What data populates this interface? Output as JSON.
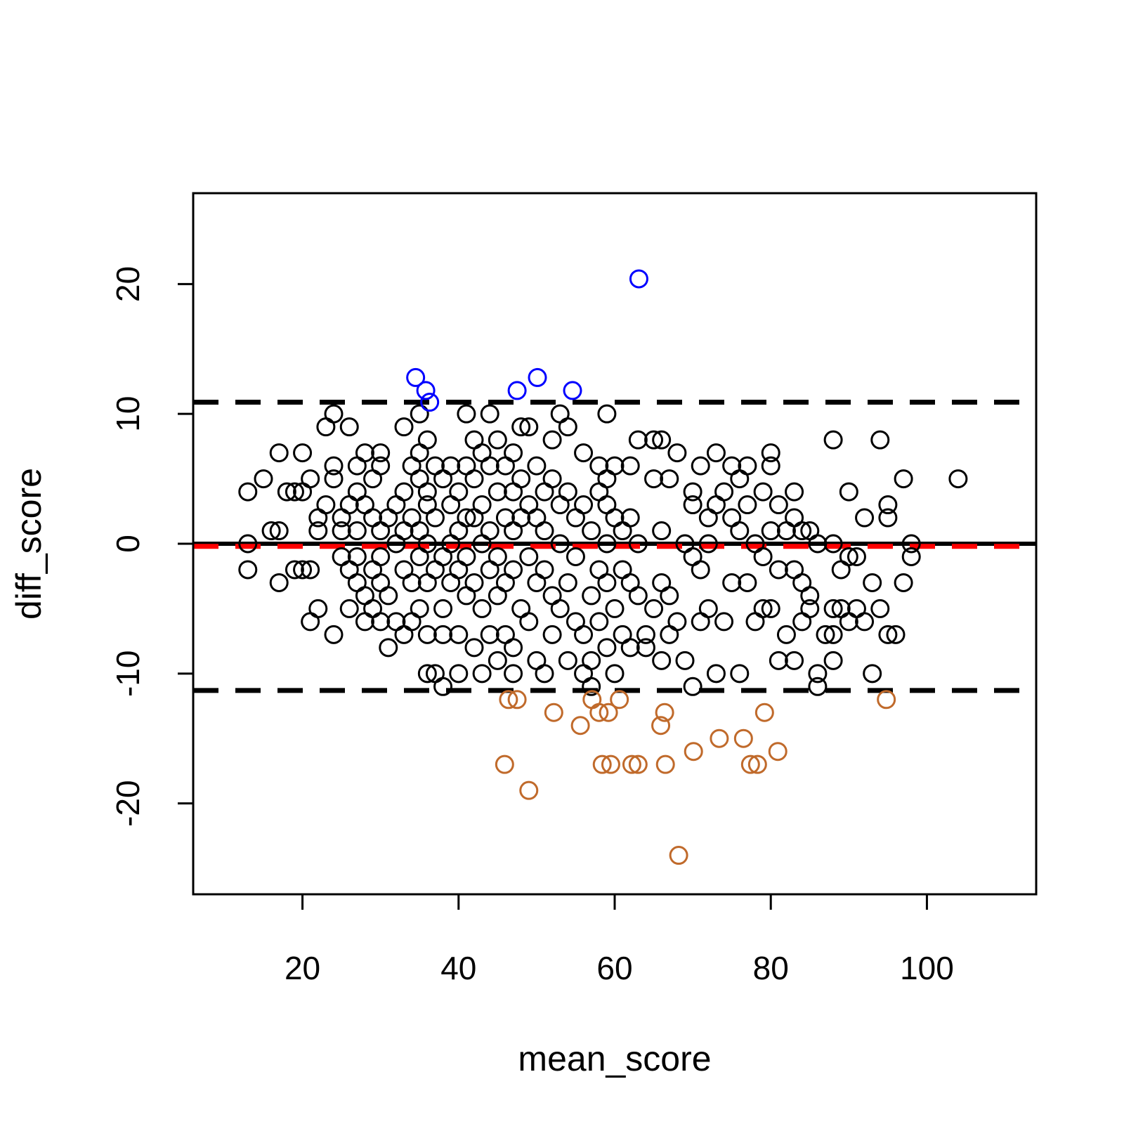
{
  "chart_data": {
    "type": "scatter",
    "title": "",
    "xlabel": "mean_score",
    "ylabel": "diff_score",
    "xlim": [
      6,
      114
    ],
    "ylim": [
      -27,
      27
    ],
    "x_ticks": [
      20,
      40,
      60,
      80,
      100
    ],
    "y_ticks": [
      -20,
      -10,
      0,
      10,
      20
    ],
    "x_tick_labels": [
      "20",
      "40",
      "60",
      "80",
      "100"
    ],
    "y_tick_labels": [
      "-20",
      "-10",
      "0",
      "10",
      "20"
    ],
    "grid": false,
    "legend": "none",
    "reference_lines": [
      {
        "name": "zero",
        "y": 0,
        "style": "solid",
        "color": "#000000"
      },
      {
        "name": "mean difference",
        "y": -0.2,
        "style": "dashed",
        "color": "#ff0000"
      },
      {
        "name": "upper limit of agreement",
        "y": 10.9,
        "style": "dashed",
        "color": "#000000"
      },
      {
        "name": "lower limit of agreement",
        "y": -11.3,
        "style": "dashed",
        "color": "#000000"
      }
    ],
    "series": [
      {
        "color": "#000000",
        "points": [
          [
            13,
            4
          ],
          [
            13,
            0
          ],
          [
            13,
            -2
          ],
          [
            15,
            5
          ],
          [
            16,
            1
          ],
          [
            17,
            1
          ],
          [
            17,
            7
          ],
          [
            17,
            -3
          ],
          [
            18,
            4
          ],
          [
            19,
            4
          ],
          [
            19,
            -2
          ],
          [
            20,
            7
          ],
          [
            20,
            4
          ],
          [
            20,
            -2
          ],
          [
            21,
            5
          ],
          [
            21,
            -2
          ],
          [
            21,
            -6
          ],
          [
            22,
            1
          ],
          [
            22,
            -5
          ],
          [
            22,
            2
          ],
          [
            23,
            3
          ],
          [
            23,
            9
          ],
          [
            24,
            5
          ],
          [
            24,
            6
          ],
          [
            24,
            -7
          ],
          [
            24,
            10
          ],
          [
            25,
            1
          ],
          [
            25,
            -1
          ],
          [
            25,
            2
          ],
          [
            26,
            3
          ],
          [
            26,
            -2
          ],
          [
            26,
            -5
          ],
          [
            26,
            9
          ],
          [
            27,
            6
          ],
          [
            27,
            1
          ],
          [
            27,
            4
          ],
          [
            27,
            -1
          ],
          [
            27,
            -3
          ],
          [
            28,
            7
          ],
          [
            28,
            3
          ],
          [
            28,
            -4
          ],
          [
            28,
            -6
          ],
          [
            29,
            2
          ],
          [
            29,
            -2
          ],
          [
            29,
            5
          ],
          [
            29,
            -5
          ],
          [
            30,
            1
          ],
          [
            30,
            6
          ],
          [
            30,
            -1
          ],
          [
            30,
            -3
          ],
          [
            30,
            -6
          ],
          [
            30,
            7
          ],
          [
            31,
            2
          ],
          [
            31,
            -4
          ],
          [
            31,
            -8
          ],
          [
            32,
            3
          ],
          [
            32,
            0
          ],
          [
            32,
            -6
          ],
          [
            33,
            1
          ],
          [
            33,
            4
          ],
          [
            33,
            -2
          ],
          [
            33,
            -7
          ],
          [
            33,
            9
          ],
          [
            34,
            6
          ],
          [
            34,
            2
          ],
          [
            34,
            -3
          ],
          [
            34,
            -6
          ],
          [
            35,
            7
          ],
          [
            35,
            5
          ],
          [
            35,
            1
          ],
          [
            35,
            -1
          ],
          [
            35,
            -5
          ],
          [
            35,
            10
          ],
          [
            36,
            4
          ],
          [
            36,
            3
          ],
          [
            36,
            8
          ],
          [
            36,
            0
          ],
          [
            36,
            -3
          ],
          [
            36,
            -7
          ],
          [
            36,
            -10
          ],
          [
            37,
            6
          ],
          [
            37,
            2
          ],
          [
            37,
            -2
          ],
          [
            37,
            -10
          ],
          [
            38,
            5
          ],
          [
            38,
            -1
          ],
          [
            38,
            -5
          ],
          [
            38,
            -7
          ],
          [
            38,
            -11
          ],
          [
            39,
            6
          ],
          [
            39,
            3
          ],
          [
            39,
            0
          ],
          [
            39,
            -3
          ],
          [
            40,
            4
          ],
          [
            40,
            1
          ],
          [
            40,
            -2
          ],
          [
            40,
            -7
          ],
          [
            40,
            -10
          ],
          [
            41,
            6
          ],
          [
            41,
            2
          ],
          [
            41,
            -1
          ],
          [
            41,
            -4
          ],
          [
            41,
            10
          ],
          [
            42,
            8
          ],
          [
            42,
            5
          ],
          [
            42,
            2
          ],
          [
            42,
            -3
          ],
          [
            42,
            -8
          ],
          [
            43,
            7
          ],
          [
            43,
            3
          ],
          [
            43,
            0
          ],
          [
            43,
            -5
          ],
          [
            43,
            -10
          ],
          [
            44,
            10
          ],
          [
            44,
            6
          ],
          [
            44,
            1
          ],
          [
            44,
            -2
          ],
          [
            44,
            -7
          ],
          [
            45,
            8
          ],
          [
            45,
            4
          ],
          [
            45,
            -1
          ],
          [
            45,
            -4
          ],
          [
            45,
            -9
          ],
          [
            46,
            6
          ],
          [
            46,
            2
          ],
          [
            46,
            -3
          ],
          [
            46,
            -7
          ],
          [
            47,
            7
          ],
          [
            47,
            4
          ],
          [
            47,
            1
          ],
          [
            47,
            -2
          ],
          [
            47,
            -8
          ],
          [
            47,
            -10
          ],
          [
            48,
            5
          ],
          [
            48,
            2
          ],
          [
            48,
            -5
          ],
          [
            48,
            9
          ],
          [
            49,
            3
          ],
          [
            49,
            -1
          ],
          [
            49,
            -6
          ],
          [
            49,
            9
          ],
          [
            50,
            6
          ],
          [
            50,
            2
          ],
          [
            50,
            -3
          ],
          [
            50,
            -9
          ],
          [
            51,
            4
          ],
          [
            51,
            1
          ],
          [
            51,
            -2
          ],
          [
            51,
            -10
          ],
          [
            52,
            8
          ],
          [
            52,
            5
          ],
          [
            52,
            -4
          ],
          [
            52,
            -7
          ],
          [
            53,
            10
          ],
          [
            53,
            3
          ],
          [
            53,
            0
          ],
          [
            53,
            -5
          ],
          [
            54,
            9
          ],
          [
            54,
            4
          ],
          [
            54,
            -3
          ],
          [
            54,
            -9
          ],
          [
            55,
            2
          ],
          [
            55,
            -1
          ],
          [
            55,
            -6
          ],
          [
            56,
            7
          ],
          [
            56,
            3
          ],
          [
            56,
            -7
          ],
          [
            56,
            -10
          ],
          [
            57,
            1
          ],
          [
            57,
            -4
          ],
          [
            57,
            -9
          ],
          [
            57,
            -11
          ],
          [
            58,
            6
          ],
          [
            58,
            4
          ],
          [
            58,
            -2
          ],
          [
            58,
            -6
          ],
          [
            59,
            5
          ],
          [
            59,
            3
          ],
          [
            59,
            0
          ],
          [
            59,
            -3
          ],
          [
            59,
            -8
          ],
          [
            59,
            10
          ],
          [
            60,
            6
          ],
          [
            60,
            2
          ],
          [
            60,
            -5
          ],
          [
            60,
            -10
          ],
          [
            61,
            1
          ],
          [
            61,
            -2
          ],
          [
            61,
            -7
          ],
          [
            62,
            6
          ],
          [
            62,
            2
          ],
          [
            62,
            -3
          ],
          [
            62,
            -8
          ],
          [
            63,
            8
          ],
          [
            63,
            0
          ],
          [
            63,
            -4
          ],
          [
            64,
            -7
          ],
          [
            64,
            -8
          ],
          [
            65,
            5
          ],
          [
            65,
            8
          ],
          [
            65,
            -5
          ],
          [
            66,
            8
          ],
          [
            66,
            1
          ],
          [
            66,
            -3
          ],
          [
            66,
            -9
          ],
          [
            67,
            5
          ],
          [
            67,
            -4
          ],
          [
            67,
            -7
          ],
          [
            68,
            7
          ],
          [
            68,
            -6
          ],
          [
            69,
            0
          ],
          [
            69,
            -9
          ],
          [
            70,
            3
          ],
          [
            70,
            4
          ],
          [
            70,
            -1
          ],
          [
            70,
            -11
          ],
          [
            71,
            6
          ],
          [
            71,
            -2
          ],
          [
            71,
            -6
          ],
          [
            72,
            2
          ],
          [
            72,
            0
          ],
          [
            72,
            -5
          ],
          [
            73,
            7
          ],
          [
            73,
            3
          ],
          [
            73,
            -10
          ],
          [
            74,
            4
          ],
          [
            74,
            -6
          ],
          [
            75,
            2
          ],
          [
            75,
            6
          ],
          [
            75,
            -3
          ],
          [
            76,
            5
          ],
          [
            76,
            1
          ],
          [
            76,
            -10
          ],
          [
            77,
            3
          ],
          [
            77,
            -3
          ],
          [
            77,
            6
          ],
          [
            78,
            0
          ],
          [
            78,
            -6
          ],
          [
            79,
            4
          ],
          [
            79,
            -1
          ],
          [
            79,
            -5
          ],
          [
            80,
            6
          ],
          [
            80,
            1
          ],
          [
            80,
            -5
          ],
          [
            80,
            7
          ],
          [
            81,
            3
          ],
          [
            81,
            -2
          ],
          [
            81,
            -9
          ],
          [
            82,
            1
          ],
          [
            82,
            -7
          ],
          [
            83,
            2
          ],
          [
            83,
            4
          ],
          [
            83,
            -2
          ],
          [
            83,
            -9
          ],
          [
            84,
            1
          ],
          [
            84,
            -3
          ],
          [
            84,
            -6
          ],
          [
            85,
            1
          ],
          [
            85,
            -4
          ],
          [
            85,
            -5
          ],
          [
            86,
            0
          ],
          [
            86,
            -11
          ],
          [
            86,
            -10
          ],
          [
            87,
            -7
          ],
          [
            88,
            0
          ],
          [
            88,
            -5
          ],
          [
            88,
            -7
          ],
          [
            88,
            -9
          ],
          [
            88,
            8
          ],
          [
            89,
            -2
          ],
          [
            89,
            -5
          ],
          [
            90,
            4
          ],
          [
            90,
            -6
          ],
          [
            90,
            -1
          ],
          [
            91,
            -1
          ],
          [
            91,
            -5
          ],
          [
            92,
            2
          ],
          [
            92,
            -6
          ],
          [
            93,
            -3
          ],
          [
            93,
            -10
          ],
          [
            94,
            8
          ],
          [
            94,
            -5
          ],
          [
            95,
            3
          ],
          [
            95,
            -7
          ],
          [
            95,
            2
          ],
          [
            96,
            -7
          ],
          [
            97,
            5
          ],
          [
            97,
            -3
          ],
          [
            98,
            0
          ],
          [
            98,
            -1
          ],
          [
            104,
            5
          ]
        ]
      },
      {
        "color": "#0000ff",
        "points": [
          [
            34.5,
            12.8
          ],
          [
            35.8,
            11.8
          ],
          [
            36.3,
            10.9
          ],
          [
            47.5,
            11.8
          ],
          [
            50.1,
            12.8
          ],
          [
            54.6,
            11.8
          ],
          [
            63.1,
            20.4
          ]
        ]
      },
      {
        "color": "#c06a2b",
        "points": [
          [
            45.9,
            -17
          ],
          [
            46.4,
            -12
          ],
          [
            47.5,
            -12
          ],
          [
            49,
            -19
          ],
          [
            52.2,
            -13
          ],
          [
            55.6,
            -14
          ],
          [
            57.1,
            -12
          ],
          [
            58,
            -13
          ],
          [
            58.4,
            -17
          ],
          [
            59.2,
            -13
          ],
          [
            59.5,
            -17
          ],
          [
            60.6,
            -12
          ],
          [
            62.2,
            -17
          ],
          [
            63,
            -17
          ],
          [
            65.9,
            -14
          ],
          [
            66.4,
            -13
          ],
          [
            66.5,
            -17
          ],
          [
            68.2,
            -24
          ],
          [
            70.1,
            -16
          ],
          [
            73.4,
            -15
          ],
          [
            76.5,
            -15
          ],
          [
            77.4,
            -17
          ],
          [
            78.3,
            -17
          ],
          [
            79.2,
            -13
          ],
          [
            80.9,
            -16
          ],
          [
            94.8,
            -12
          ]
        ]
      }
    ]
  }
}
